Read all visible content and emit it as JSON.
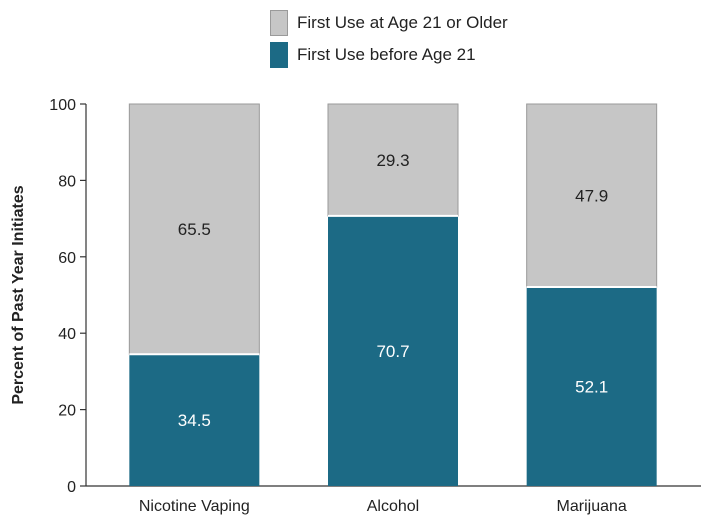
{
  "chart_data": {
    "type": "bar",
    "stacked": true,
    "categories": [
      "Nicotine Vaping",
      "Alcohol",
      "Marijuana"
    ],
    "series": [
      {
        "name": "First Use before Age 21",
        "values": [
          34.5,
          70.7,
          52.1
        ],
        "color": "#1c6a85"
      },
      {
        "name": "First Use at Age 21 or Older",
        "values": [
          65.5,
          29.3,
          47.9
        ],
        "color": "#c6c6c6"
      }
    ],
    "title": "",
    "xlabel": "",
    "ylabel": "Percent of Past Year Initiates",
    "ylim": [
      0,
      100
    ],
    "yticks": [
      0,
      20,
      40,
      60,
      80,
      100
    ],
    "grid": false,
    "legend_position": "top-center"
  }
}
